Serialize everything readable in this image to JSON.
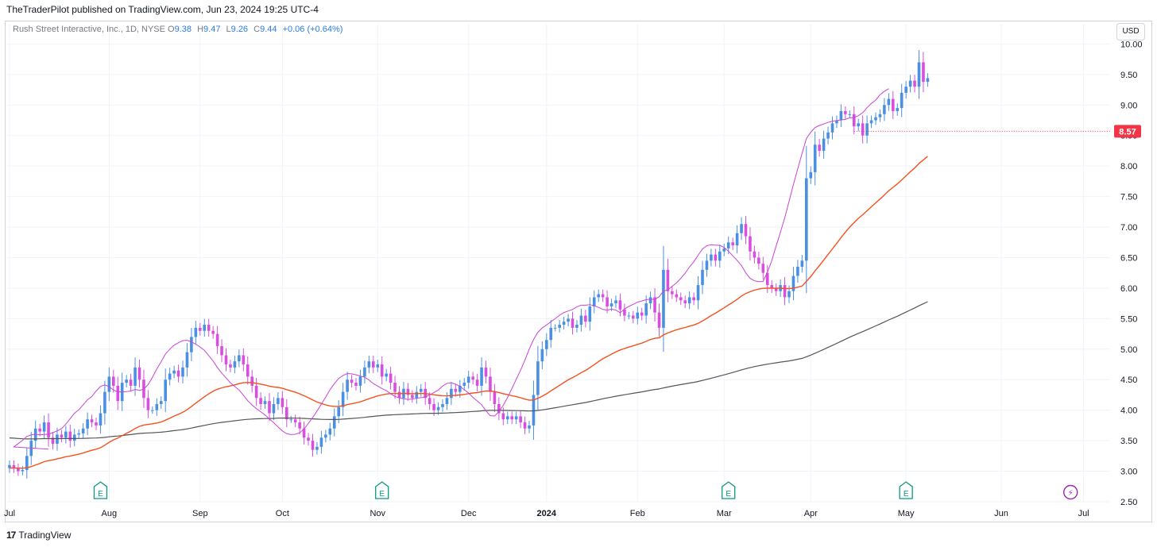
{
  "publisher_line": "TheTraderPilot published on TradingView.com, Jun 23, 2024 19:25 UTC-4",
  "footer_brand": "TradingView",
  "footer_logo_glyph": "17",
  "currency": "USD",
  "legend": {
    "symbol": "Rush Street Interactive, Inc., 1D, NYSE",
    "open_label": "O",
    "open": "9.38",
    "high_label": "H",
    "high": "9.47",
    "low_label": "L",
    "low": "9.26",
    "close_label": "C",
    "close": "9.44",
    "change": "+0.06 (+0.64%)"
  },
  "colors": {
    "up": "#4a90e2",
    "down": "#d84fe0",
    "ma_fast": "#c844d6",
    "ma_mid": "#f4511e",
    "ma_slow": "#555555",
    "price_tag": "#f23645",
    "grid": "#f0f3fa",
    "earnings": "#089981"
  },
  "chart_data": {
    "type": "candlestick",
    "ylim": [
      2.5,
      10.2
    ],
    "y_ticks": [
      "2.50",
      "3.00",
      "3.50",
      "4.00",
      "4.50",
      "5.00",
      "5.50",
      "6.00",
      "6.50",
      "7.00",
      "7.50",
      "8.00",
      "8.50",
      "9.00",
      "9.50",
      "10.00"
    ],
    "x_ticks": [
      {
        "label": "Jul",
        "day": 0
      },
      {
        "label": "Aug",
        "day": 23
      },
      {
        "label": "Sep",
        "day": 44
      },
      {
        "label": "Oct",
        "day": 63
      },
      {
        "label": "Nov",
        "day": 85
      },
      {
        "label": "Dec",
        "day": 106
      },
      {
        "label": "2024",
        "day": 124,
        "bold": true
      },
      {
        "label": "Feb",
        "day": 145
      },
      {
        "label": "Mar",
        "day": 165
      },
      {
        "label": "Apr",
        "day": 185
      },
      {
        "label": "May",
        "day": 207
      },
      {
        "label": "Jun",
        "day": 229
      },
      {
        "label": "Jul",
        "day": 248
      }
    ],
    "price_line": {
      "value": 8.57,
      "label": "8.57"
    },
    "earnings_markers": [
      {
        "day": 21,
        "label": "E"
      },
      {
        "day": 86,
        "label": "E"
      },
      {
        "day": 166,
        "label": "E"
      },
      {
        "day": 207,
        "label": "E"
      }
    ],
    "dividend_marker": {
      "day": 245,
      "glyph": "⚡"
    },
    "closes": [
      3.1,
      3.05,
      3.0,
      3.02,
      3.25,
      3.5,
      3.7,
      3.65,
      3.8,
      3.55,
      3.45,
      3.6,
      3.55,
      3.65,
      3.5,
      3.6,
      3.62,
      3.7,
      3.85,
      3.8,
      3.75,
      3.95,
      4.3,
      4.55,
      4.4,
      4.15,
      4.45,
      4.5,
      4.4,
      4.7,
      4.5,
      4.2,
      4.0,
      4.0,
      4.1,
      4.15,
      4.5,
      4.6,
      4.65,
      4.55,
      4.7,
      4.95,
      5.2,
      5.35,
      5.3,
      5.4,
      5.3,
      5.25,
      5.05,
      4.9,
      4.75,
      4.7,
      4.8,
      4.9,
      4.75,
      4.55,
      4.4,
      4.2,
      4.1,
      4.15,
      3.95,
      4.1,
      4.2,
      4.05,
      3.85,
      3.85,
      3.8,
      3.7,
      3.55,
      3.5,
      3.35,
      3.4,
      3.55,
      3.6,
      3.7,
      3.9,
      4.05,
      4.3,
      4.5,
      4.45,
      4.4,
      4.55,
      4.7,
      4.8,
      4.7,
      4.75,
      4.55,
      4.6,
      4.45,
      4.3,
      4.2,
      4.35,
      4.25,
      4.2,
      4.3,
      4.35,
      4.2,
      4.1,
      4.0,
      4.05,
      4.1,
      4.2,
      4.35,
      4.3,
      4.4,
      4.45,
      4.55,
      4.5,
      4.4,
      4.7,
      4.55,
      4.3,
      4.1,
      3.95,
      3.85,
      3.9,
      3.85,
      3.9,
      3.8,
      3.7,
      3.75,
      4.25,
      4.8,
      5.0,
      5.15,
      5.35,
      5.35,
      5.4,
      5.45,
      5.5,
      5.35,
      5.4,
      5.55,
      5.45,
      5.7,
      5.85,
      5.9,
      5.85,
      5.7,
      5.75,
      5.8,
      5.65,
      5.55,
      5.55,
      5.5,
      5.6,
      5.55,
      5.75,
      5.85,
      5.6,
      5.35,
      6.3,
      5.95,
      5.9,
      5.85,
      5.8,
      5.75,
      5.85,
      5.8,
      6.05,
      6.3,
      6.45,
      6.55,
      6.45,
      6.6,
      6.65,
      6.75,
      6.7,
      6.9,
      7.05,
      6.85,
      6.6,
      6.5,
      6.4,
      6.25,
      6.05,
      6.0,
      5.95,
      6.05,
      5.85,
      5.95,
      6.2,
      6.35,
      6.45,
      7.8,
      7.9,
      8.35,
      8.25,
      8.45,
      8.55,
      8.7,
      8.75,
      8.9,
      8.85,
      8.85,
      8.65,
      8.7,
      8.5,
      8.7,
      8.75,
      8.8,
      8.85,
      9.0,
      9.1,
      8.9,
      8.95,
      9.2,
      9.3,
      9.4,
      9.3,
      9.7,
      9.38,
      9.44
    ]
  }
}
